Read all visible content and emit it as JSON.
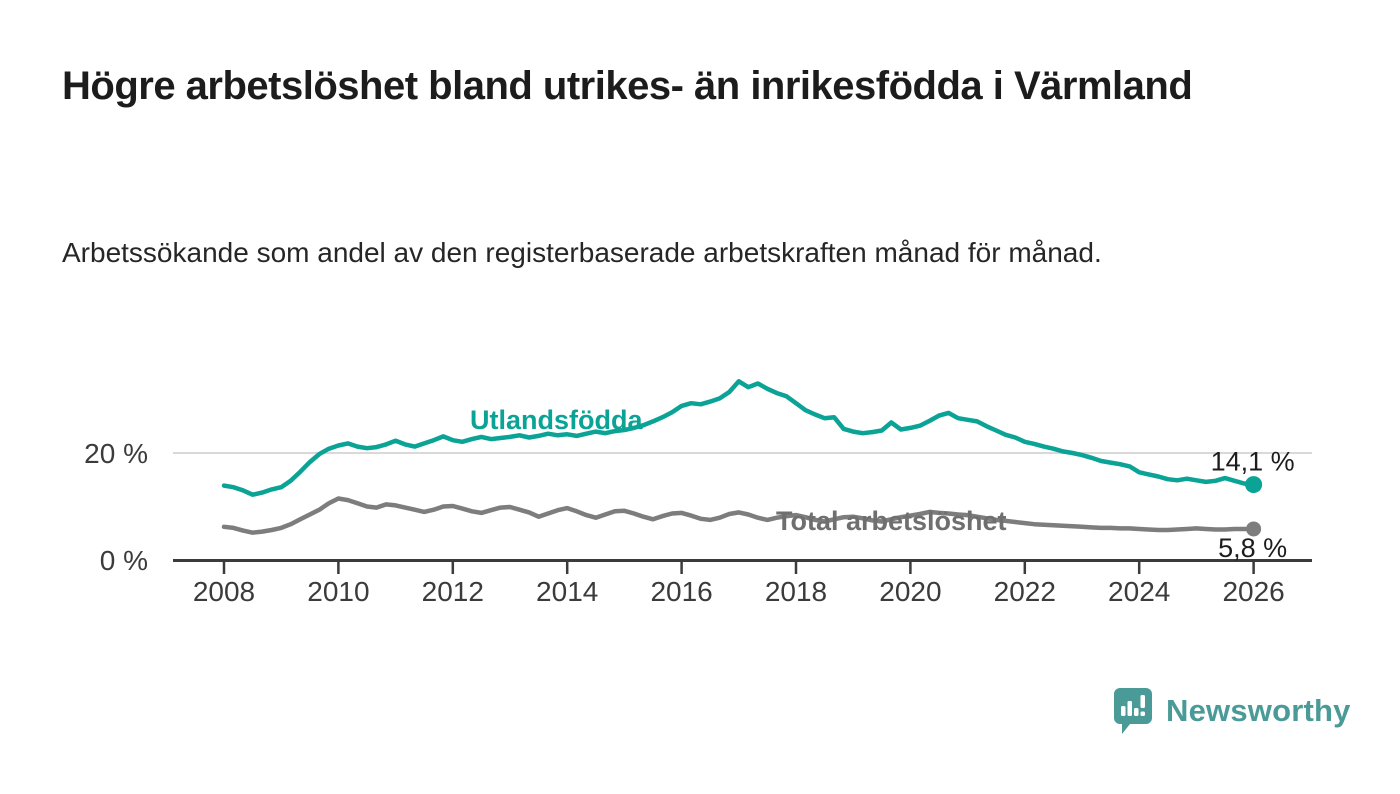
{
  "header": {
    "title": "Högre arbetslöshet bland utrikes- än inrikesfödda i Värmland",
    "subtitle": "Arbetssökande som andel av den registerbaserade arbetskraften månad för månad."
  },
  "footer": {
    "brand": "Newsworthy",
    "logo_icon": "newsworthy-speech-bubble-bar-chart-icon"
  },
  "colors": {
    "accent_teal": "#0ba396",
    "series_gray": "#7d7d7d",
    "series_gray_label": "#6f6f6f",
    "axis": "#3b3b3b",
    "gridline": "#d9d9d9",
    "value_label": "#1d1d1d",
    "brand_teal": "#4a9b97",
    "title_text": "#1c1c1c"
  },
  "chart_data": {
    "type": "line",
    "title": "Högre arbetslöshet bland utrikes- än inrikesfödda i Värmland",
    "xlabel": "",
    "ylabel": "Arbetssökande som andel av den registerbaserade arbetskraften (%)",
    "x_start": 2008,
    "x_step_years": 0.1666667,
    "x_ticks": [
      2008,
      2010,
      2012,
      2014,
      2016,
      2018,
      2020,
      2022,
      2024,
      2026
    ],
    "y_ticks": [
      {
        "value": 0,
        "label": "0 %"
      },
      {
        "value": 20,
        "label": "20 %"
      }
    ],
    "ylim": [
      0,
      36
    ],
    "grid": "single horizontal gridline at 20 %",
    "legend_position": "inline labels next to lines",
    "series": [
      {
        "name": "Total arbetslöshet",
        "color": "#7d7d7d",
        "label_color": "#6f6f6f",
        "end_label": "5,8 %",
        "end_value": 5.8,
        "values": [
          6.2,
          6.0,
          5.5,
          5.1,
          5.3,
          5.6,
          6.0,
          6.7,
          7.6,
          8.5,
          9.4,
          10.6,
          11.5,
          11.2,
          10.6,
          10.0,
          9.8,
          10.4,
          10.2,
          9.8,
          9.4,
          9.0,
          9.4,
          10.0,
          10.1,
          9.6,
          9.1,
          8.8,
          9.3,
          9.8,
          9.9,
          9.4,
          8.9,
          8.1,
          8.7,
          9.3,
          9.7,
          9.1,
          8.4,
          7.9,
          8.5,
          9.1,
          9.2,
          8.7,
          8.1,
          7.6,
          8.2,
          8.7,
          8.8,
          8.3,
          7.7,
          7.5,
          7.9,
          8.6,
          8.9,
          8.5,
          7.9,
          7.5,
          7.9,
          8.2,
          8.4,
          8.0,
          7.5,
          7.2,
          7.6,
          8.0,
          8.1,
          7.8,
          7.4,
          7.2,
          7.6,
          8.0,
          8.3,
          8.6,
          9.0,
          8.8,
          8.7,
          8.5,
          8.4,
          8.1,
          7.8,
          7.5,
          7.3,
          7.1,
          6.9,
          6.7,
          6.6,
          6.5,
          6.4,
          6.3,
          6.2,
          6.1,
          6.0,
          6.0,
          5.9,
          5.9,
          5.8,
          5.7,
          5.6,
          5.6,
          5.7,
          5.8,
          5.9,
          5.8,
          5.7,
          5.7,
          5.8,
          5.8,
          5.8
        ]
      },
      {
        "name": "Utlandsfödda",
        "color": "#0ba396",
        "label_color": "#0ba396",
        "end_label": "14,1 %",
        "end_value": 14.1,
        "values": [
          13.9,
          13.6,
          13.0,
          12.2,
          12.6,
          13.2,
          13.6,
          14.8,
          16.5,
          18.3,
          19.8,
          20.8,
          21.4,
          21.8,
          21.2,
          20.9,
          21.1,
          21.6,
          22.3,
          21.6,
          21.2,
          21.8,
          22.4,
          23.1,
          22.4,
          22.1,
          22.6,
          23.0,
          22.6,
          22.8,
          23.0,
          23.3,
          22.9,
          23.2,
          23.6,
          23.3,
          23.5,
          23.2,
          23.6,
          24.0,
          23.7,
          24.1,
          24.3,
          24.7,
          25.2,
          25.9,
          26.7,
          27.6,
          28.8,
          29.3,
          29.1,
          29.6,
          30.2,
          31.4,
          33.4,
          32.3,
          33.0,
          32.0,
          31.2,
          30.6,
          29.3,
          28.0,
          27.2,
          26.5,
          26.7,
          24.5,
          24.0,
          23.7,
          23.9,
          24.2,
          25.7,
          24.4,
          24.7,
          25.1,
          26.0,
          27.0,
          27.5,
          26.5,
          26.2,
          25.9,
          25.0,
          24.2,
          23.4,
          22.9,
          22.1,
          21.7,
          21.2,
          20.8,
          20.3,
          20.0,
          19.6,
          19.1,
          18.5,
          18.2,
          17.9,
          17.5,
          16.4,
          16.0,
          15.6,
          15.1,
          14.9,
          15.2,
          14.9,
          14.6,
          14.8,
          15.3,
          14.8,
          14.3,
          14.1
        ]
      }
    ]
  }
}
